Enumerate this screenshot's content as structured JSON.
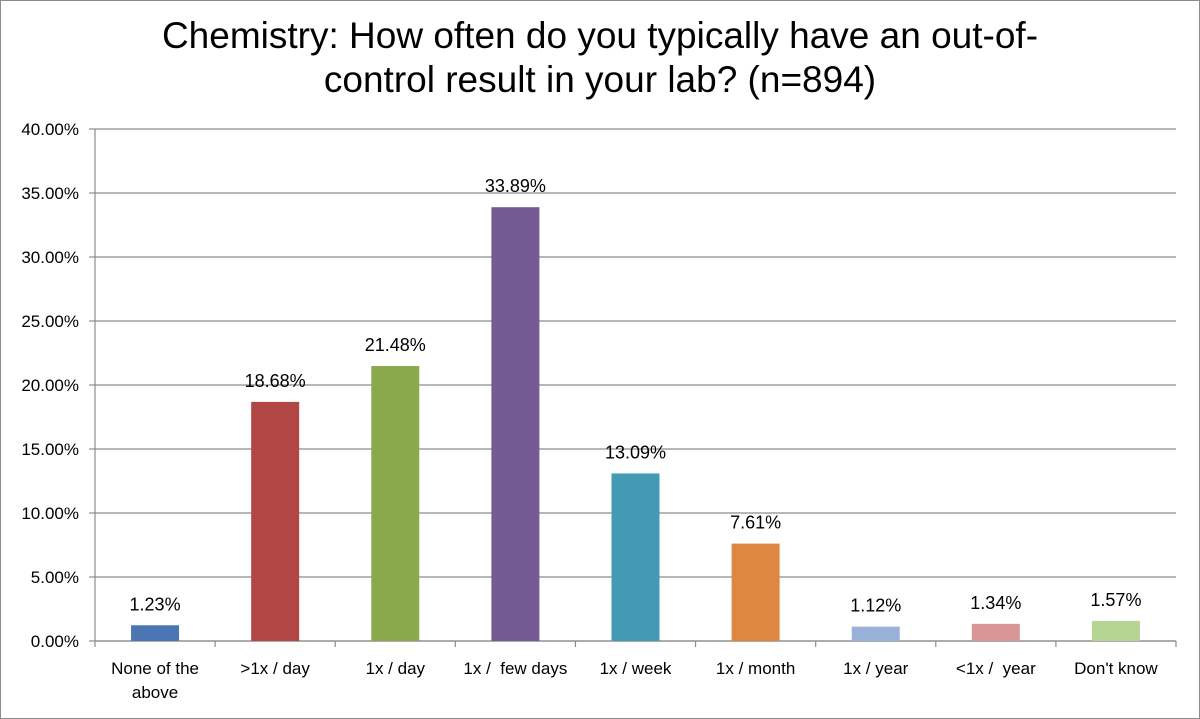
{
  "chart_data": {
    "type": "bar",
    "title": "Chemistry: How often do you typically have an out-of-control result in your lab? (n=894)",
    "title_lines": [
      "Chemistry: How often do you typically have an out-of-",
      "control result in your lab? (n=894)"
    ],
    "xlabel": "",
    "ylabel": "",
    "ylim": [
      0,
      40
    ],
    "yticks": [
      0,
      5,
      10,
      15,
      20,
      25,
      30,
      35,
      40
    ],
    "ytick_labels": [
      "0.00%",
      "5.00%",
      "10.00%",
      "15.00%",
      "20.00%",
      "25.00%",
      "30.00%",
      "35.00%",
      "40.00%"
    ],
    "grid": true,
    "legend": "none",
    "categories": [
      [
        "None of the",
        "above"
      ],
      [
        ">1x / day"
      ],
      [
        "1x / day"
      ],
      [
        "1x /  few days"
      ],
      [
        "1x / week"
      ],
      [
        "1x / month"
      ],
      [
        "1x / year"
      ],
      [
        "<1x /  year"
      ],
      [
        "Don't know"
      ]
    ],
    "values": [
      1.23,
      18.68,
      21.48,
      33.89,
      13.09,
      7.61,
      1.12,
      1.34,
      1.57
    ],
    "data_labels": [
      "1.23%",
      "18.68%",
      "21.48%",
      "33.89%",
      "13.09%",
      "7.61%",
      "1.12%",
      "1.34%",
      "1.57%"
    ],
    "colors": [
      "#4a76b4",
      "#b04745",
      "#8aa84d",
      "#735a93",
      "#429bb2",
      "#dd8741",
      "#98b1d8",
      "#d99694",
      "#b6d493"
    ]
  }
}
